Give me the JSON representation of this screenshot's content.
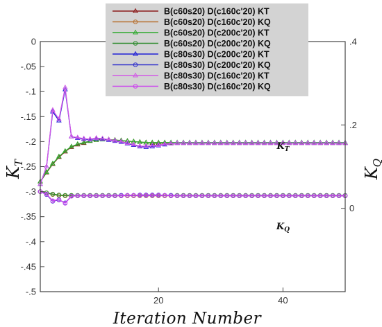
{
  "chart_data": {
    "type": "line",
    "xlabel": "Iteration Number",
    "ylabel_left": "K_T",
    "ylabel_right": "K_Q",
    "xlim": [
      1,
      50
    ],
    "ylim_left": [
      -0.5,
      0
    ],
    "ylim_right": [
      -0.2,
      0.4
    ],
    "x_ticks": [
      20,
      40
    ],
    "y_ticks_left": [
      0,
      -0.05,
      -0.1,
      -0.15,
      -0.2,
      -0.25,
      -0.3,
      -0.35,
      -0.4,
      -0.45,
      -0.5
    ],
    "y_ticks_right": [
      0,
      0.2,
      0.4
    ],
    "legend_position": "top-center",
    "annotations": [
      {
        "text_base": "K",
        "text_sub": "T",
        "x": 40,
        "y": -0.215
      },
      {
        "text_base": "K",
        "text_sub": "Q",
        "x": 40,
        "y": -0.375
      }
    ],
    "series": [
      {
        "name": "B(c60s20) D(c160c'20) KT",
        "color": "#8b1a1a",
        "marker": "triangle",
        "axis": "left",
        "x": [
          1,
          2,
          3,
          4,
          5,
          6,
          7,
          8,
          9,
          10,
          11,
          12,
          13,
          14,
          15,
          16,
          17,
          18,
          19,
          20,
          21,
          22,
          23,
          24,
          25,
          26,
          27,
          28,
          29,
          30,
          31,
          32,
          33,
          34,
          35,
          36,
          37,
          38,
          39,
          40,
          41,
          42,
          43,
          44,
          45,
          46,
          47,
          48,
          49,
          50
        ],
        "y": [
          -0.28,
          -0.262,
          -0.245,
          -0.231,
          -0.22,
          -0.211,
          -0.206,
          -0.203,
          -0.199,
          -0.197,
          -0.196,
          -0.196,
          -0.197,
          -0.198,
          -0.199,
          -0.2,
          -0.201,
          -0.202,
          -0.203,
          -0.203,
          -0.203,
          -0.203,
          -0.203,
          -0.203,
          -0.203,
          -0.203,
          -0.203,
          -0.203,
          -0.203,
          -0.203,
          -0.203,
          -0.203,
          -0.203,
          -0.203,
          -0.203,
          -0.203,
          -0.203,
          -0.203,
          -0.203,
          -0.203,
          -0.203,
          -0.203,
          -0.203,
          -0.203,
          -0.203,
          -0.203,
          -0.203,
          -0.203,
          -0.203,
          -0.203
        ]
      },
      {
        "name": "B(c60s20) D(c160c'20) KQ",
        "color": "#b87333",
        "marker": "circle",
        "axis": "right",
        "x": [
          1,
          2,
          3,
          4,
          5,
          6,
          7,
          8,
          9,
          10,
          11,
          12,
          13,
          14,
          15,
          16,
          17,
          18,
          19,
          20,
          21,
          22,
          23,
          24,
          25,
          26,
          27,
          28,
          29,
          30,
          31,
          32,
          33,
          34,
          35,
          36,
          37,
          38,
          39,
          40,
          41,
          42,
          43,
          44,
          45,
          46,
          47,
          48,
          49,
          50
        ],
        "y": [
          0.04,
          0.037,
          0.033,
          0.031,
          0.03,
          0.03,
          0.03,
          0.03,
          0.03,
          0.03,
          0.03,
          0.03,
          0.03,
          0.03,
          0.03,
          0.03,
          0.03,
          0.03,
          0.03,
          0.03,
          0.03,
          0.03,
          0.03,
          0.03,
          0.03,
          0.03,
          0.03,
          0.03,
          0.03,
          0.03,
          0.03,
          0.03,
          0.03,
          0.03,
          0.03,
          0.03,
          0.03,
          0.03,
          0.03,
          0.03,
          0.03,
          0.03,
          0.03,
          0.03,
          0.03,
          0.03,
          0.03,
          0.03,
          0.03,
          0.03
        ]
      },
      {
        "name": "B(c60s20) D(c200c'20) KT",
        "color": "#2eaa2e",
        "marker": "triangle",
        "axis": "left",
        "x": [
          1,
          2,
          3,
          4,
          5,
          6,
          7,
          8,
          9,
          10,
          11,
          12,
          13,
          14,
          15,
          16,
          17,
          18,
          19,
          20,
          21,
          22,
          23,
          24,
          25,
          26,
          27,
          28,
          29,
          30,
          31,
          32,
          33,
          34,
          35,
          36,
          37,
          38,
          39,
          40,
          41,
          42,
          43,
          44,
          45,
          46,
          47,
          48,
          49,
          50
        ],
        "y": [
          -0.28,
          -0.261,
          -0.244,
          -0.23,
          -0.219,
          -0.21,
          -0.205,
          -0.202,
          -0.199,
          -0.197,
          -0.196,
          -0.196,
          -0.197,
          -0.198,
          -0.199,
          -0.2,
          -0.201,
          -0.202,
          -0.202,
          -0.202,
          -0.202,
          -0.202,
          -0.202,
          -0.202,
          -0.202,
          -0.202,
          -0.202,
          -0.202,
          -0.202,
          -0.202,
          -0.202,
          -0.202,
          -0.202,
          -0.202,
          -0.202,
          -0.202,
          -0.202,
          -0.202,
          -0.202,
          -0.202,
          -0.202,
          -0.202,
          -0.202,
          -0.202,
          -0.202,
          -0.202,
          -0.202,
          -0.202,
          -0.202,
          -0.202
        ]
      },
      {
        "name": "B(c60s20) D(c200c'20) KQ",
        "color": "#2e8b2e",
        "marker": "circle",
        "axis": "right",
        "x": [
          1,
          2,
          3,
          4,
          5,
          6,
          7,
          8,
          9,
          10,
          11,
          12,
          13,
          14,
          15,
          16,
          17,
          18,
          19,
          20,
          21,
          22,
          23,
          24,
          25,
          26,
          27,
          28,
          29,
          30,
          31,
          32,
          33,
          34,
          35,
          36,
          37,
          38,
          39,
          40,
          41,
          42,
          43,
          44,
          45,
          46,
          47,
          48,
          49,
          50
        ],
        "y": [
          0.04,
          0.037,
          0.034,
          0.032,
          0.031,
          0.031,
          0.031,
          0.031,
          0.031,
          0.031,
          0.031,
          0.031,
          0.031,
          0.031,
          0.031,
          0.031,
          0.031,
          0.031,
          0.031,
          0.031,
          0.031,
          0.031,
          0.031,
          0.031,
          0.031,
          0.031,
          0.031,
          0.031,
          0.031,
          0.031,
          0.031,
          0.031,
          0.031,
          0.031,
          0.031,
          0.031,
          0.031,
          0.031,
          0.031,
          0.031,
          0.031,
          0.031,
          0.031,
          0.031,
          0.031,
          0.031,
          0.031,
          0.031,
          0.031,
          0.031
        ]
      },
      {
        "name": "B(c80s30) D(c200c'20) KT",
        "color": "#1f1fd6",
        "marker": "triangle",
        "axis": "left",
        "x": [
          1,
          2,
          3,
          4,
          5,
          6,
          7,
          8,
          9,
          10,
          11,
          12,
          13,
          14,
          15,
          16,
          17,
          18,
          19,
          20,
          21,
          22,
          23,
          24,
          25,
          26,
          27,
          28,
          29,
          30,
          31,
          32,
          33,
          34,
          35,
          36,
          37,
          38,
          39,
          40,
          41,
          42,
          43,
          44,
          45,
          46,
          47,
          48,
          49,
          50
        ],
        "y": [
          -0.285,
          -0.25,
          -0.14,
          -0.158,
          -0.096,
          -0.19,
          -0.193,
          -0.195,
          -0.196,
          -0.194,
          -0.195,
          -0.197,
          -0.199,
          -0.201,
          -0.204,
          -0.207,
          -0.21,
          -0.211,
          -0.21,
          -0.208,
          -0.206,
          -0.204,
          -0.203,
          -0.203,
          -0.203,
          -0.203,
          -0.203,
          -0.203,
          -0.203,
          -0.203,
          -0.203,
          -0.203,
          -0.203,
          -0.203,
          -0.203,
          -0.203,
          -0.203,
          -0.203,
          -0.203,
          -0.203,
          -0.203,
          -0.203,
          -0.203,
          -0.203,
          -0.203,
          -0.203,
          -0.203,
          -0.203,
          -0.203,
          -0.203
        ]
      },
      {
        "name": "B(c80s30) D(c200c'20) KQ",
        "color": "#3333cc",
        "marker": "circle",
        "axis": "right",
        "x": [
          1,
          2,
          3,
          4,
          5,
          6,
          7,
          8,
          9,
          10,
          11,
          12,
          13,
          14,
          15,
          16,
          17,
          18,
          19,
          20,
          21,
          22,
          23,
          24,
          25,
          26,
          27,
          28,
          29,
          30,
          31,
          32,
          33,
          34,
          35,
          36,
          37,
          38,
          39,
          40,
          41,
          42,
          43,
          44,
          45,
          46,
          47,
          48,
          49,
          50
        ],
        "y": [
          0.04,
          0.033,
          0.017,
          0.02,
          0.013,
          0.029,
          0.03,
          0.03,
          0.03,
          0.03,
          0.03,
          0.03,
          0.03,
          0.031,
          0.031,
          0.031,
          0.032,
          0.032,
          0.032,
          0.032,
          0.031,
          0.031,
          0.03,
          0.03,
          0.03,
          0.03,
          0.03,
          0.03,
          0.03,
          0.03,
          0.03,
          0.03,
          0.03,
          0.03,
          0.03,
          0.03,
          0.03,
          0.03,
          0.03,
          0.03,
          0.03,
          0.03,
          0.03,
          0.03,
          0.03,
          0.03,
          0.03,
          0.03,
          0.03,
          0.03
        ]
      },
      {
        "name": "B(c80s30) D(c160c'20) KT",
        "color": "#d25ae6",
        "marker": "triangle",
        "axis": "left",
        "x": [
          1,
          2,
          3,
          4,
          5,
          6,
          7,
          8,
          9,
          10,
          11,
          12,
          13,
          14,
          15,
          16,
          17,
          18,
          19,
          20,
          21,
          22,
          23,
          24,
          25,
          26,
          27,
          28,
          29,
          30,
          31,
          32,
          33,
          34,
          35,
          36,
          37,
          38,
          39,
          40,
          41,
          42,
          43,
          44,
          45,
          46,
          47,
          48,
          49,
          50
        ],
        "y": [
          -0.285,
          -0.25,
          -0.137,
          -0.155,
          -0.092,
          -0.19,
          -0.192,
          -0.194,
          -0.195,
          -0.193,
          -0.194,
          -0.196,
          -0.198,
          -0.2,
          -0.203,
          -0.206,
          -0.209,
          -0.209,
          -0.208,
          -0.207,
          -0.205,
          -0.204,
          -0.203,
          -0.203,
          -0.203,
          -0.203,
          -0.203,
          -0.203,
          -0.203,
          -0.203,
          -0.203,
          -0.203,
          -0.203,
          -0.203,
          -0.203,
          -0.203,
          -0.203,
          -0.203,
          -0.203,
          -0.203,
          -0.203,
          -0.203,
          -0.203,
          -0.203,
          -0.203,
          -0.203,
          -0.203,
          -0.203,
          -0.203,
          -0.203
        ]
      },
      {
        "name": "B(c80s30) D(c160c'20) KQ",
        "color": "#cc44ee",
        "marker": "circle",
        "axis": "right",
        "x": [
          1,
          2,
          3,
          4,
          5,
          6,
          7,
          8,
          9,
          10,
          11,
          12,
          13,
          14,
          15,
          16,
          17,
          18,
          19,
          20,
          21,
          22,
          23,
          24,
          25,
          26,
          27,
          28,
          29,
          30,
          31,
          32,
          33,
          34,
          35,
          36,
          37,
          38,
          39,
          40,
          41,
          42,
          43,
          44,
          45,
          46,
          47,
          48,
          49,
          50
        ],
        "y": [
          0.04,
          0.034,
          0.018,
          0.021,
          0.012,
          0.029,
          0.03,
          0.03,
          0.03,
          0.03,
          0.03,
          0.03,
          0.03,
          0.03,
          0.031,
          0.031,
          0.031,
          0.031,
          0.031,
          0.031,
          0.031,
          0.03,
          0.03,
          0.03,
          0.03,
          0.03,
          0.03,
          0.03,
          0.03,
          0.03,
          0.03,
          0.03,
          0.03,
          0.03,
          0.03,
          0.03,
          0.03,
          0.03,
          0.03,
          0.03,
          0.03,
          0.03,
          0.03,
          0.03,
          0.03,
          0.03,
          0.03,
          0.03,
          0.03,
          0.03
        ]
      }
    ]
  },
  "legend_background": "#d3d3d3"
}
